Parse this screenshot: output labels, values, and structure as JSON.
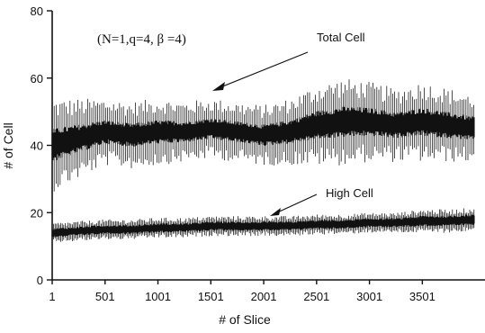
{
  "chart_data": {
    "type": "line",
    "xlabel": "# of Slice",
    "ylabel": "# of Cell",
    "xlim": [
      1,
      4000
    ],
    "ylim": [
      0,
      80
    ],
    "x_ticks": [
      1,
      501,
      1001,
      1501,
      2001,
      2501,
      3001,
      3501
    ],
    "x_tick_labels": [
      "1",
      "501",
      "1001",
      "1501",
      "2001",
      "2501",
      "3001",
      "3501"
    ],
    "y_ticks": [
      0,
      20,
      40,
      60,
      80
    ],
    "y_tick_labels": [
      "0",
      "20",
      "40",
      "60",
      "80"
    ],
    "grid": false,
    "annotation": "(N=1,q=4, β =4)",
    "series": [
      {
        "name": "Total Cell",
        "color": "#111111",
        "x": [
          1,
          250,
          500,
          750,
          1000,
          1250,
          1500,
          1750,
          2000,
          2250,
          2500,
          2750,
          3000,
          3250,
          3500,
          3750,
          4000
        ],
        "mean": [
          40,
          42,
          44,
          43,
          44,
          44,
          45,
          44,
          43,
          44,
          46,
          47,
          47,
          46,
          47,
          46,
          45
        ],
        "spread": [
          14,
          12,
          10,
          10,
          10,
          9,
          9,
          9,
          9,
          10,
          12,
          13,
          12,
          11,
          12,
          11,
          10
        ]
      },
      {
        "name": "High Cell",
        "color": "#111111",
        "x": [
          1,
          250,
          500,
          750,
          1000,
          1250,
          1500,
          1750,
          2000,
          2250,
          2500,
          2750,
          3000,
          3250,
          3500,
          3750,
          4000
        ],
        "mean": [
          14,
          14.5,
          15,
          15,
          15.5,
          15.5,
          16,
          16,
          16,
          16,
          16.5,
          16.5,
          17,
          17,
          17.5,
          17.5,
          18
        ],
        "spread": [
          3,
          3,
          3,
          3,
          3,
          3,
          3,
          3,
          3,
          3,
          3,
          3,
          3,
          3,
          3.5,
          3.5,
          3.5
        ]
      }
    ]
  }
}
